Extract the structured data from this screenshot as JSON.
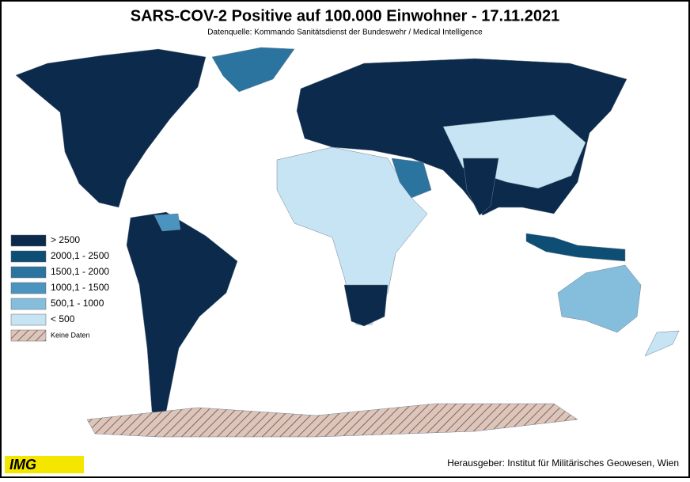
{
  "header": {
    "title": "SARS-COV-2 Positive auf 100.000 Einwohner - 17.11.2021",
    "subtitle": "Datenquelle: Kommando Sanitätsdienst der Bundeswehr / Medical Intelligence"
  },
  "legend": {
    "items": [
      {
        "label": "> 2500",
        "color": "#0b2a4c"
      },
      {
        "label": "2000,1 - 2500",
        "color": "#0f4e74"
      },
      {
        "label": "1500,1 - 2000",
        "color": "#2c74a0"
      },
      {
        "label": "1000,1 - 1500",
        "color": "#4b94c0"
      },
      {
        "label": "500,1 - 1000",
        "color": "#85bedc"
      },
      {
        "label": "< 500",
        "color": "#c6e4f3"
      },
      {
        "label": "Keine Daten",
        "color": "#dcc6bc",
        "hatched": true
      }
    ]
  },
  "footer": {
    "logo": "IMG",
    "publisher": "Herausgeber: Institut für Militärisches Geowesen, Wien"
  }
}
